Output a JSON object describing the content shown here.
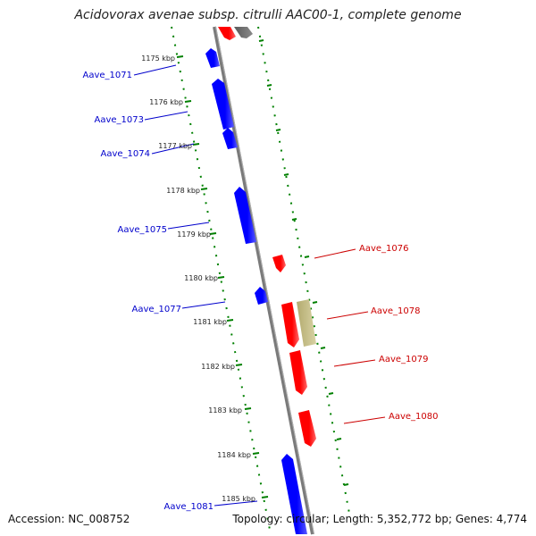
{
  "title": "Acidovorax avenae subsp. citrulli AAC00-1, complete genome",
  "footer": {
    "accession": "Accession: NC_008752",
    "summary": "Topology: circular; Length: 5,352,772 bp; Genes: 4,774"
  },
  "colors": {
    "forward_gene": "#0000ff",
    "reverse_gene": "#ff0000",
    "pseudo_gene": "#b8b07a",
    "backbone": "#808080",
    "ticks": "#008000",
    "forward_label": "#0000cc",
    "reverse_label": "#cc0000"
  },
  "scale_labels": [
    "1175 kbp",
    "1176 kbp",
    "1177 kbp",
    "1178 kbp",
    "1179 kbp",
    "1180 kbp",
    "1181 kbp",
    "1182 kbp",
    "1183 kbp",
    "1184 kbp",
    "1185 kbp"
  ],
  "gene_labels": {
    "forward": [
      "Aave_1071",
      "Aave_1073",
      "Aave_1074",
      "Aave_1075",
      "Aave_1077",
      "Aave_1081"
    ],
    "reverse": [
      "Aave_1076",
      "Aave_1078",
      "Aave_1079",
      "Aave_1080"
    ]
  }
}
